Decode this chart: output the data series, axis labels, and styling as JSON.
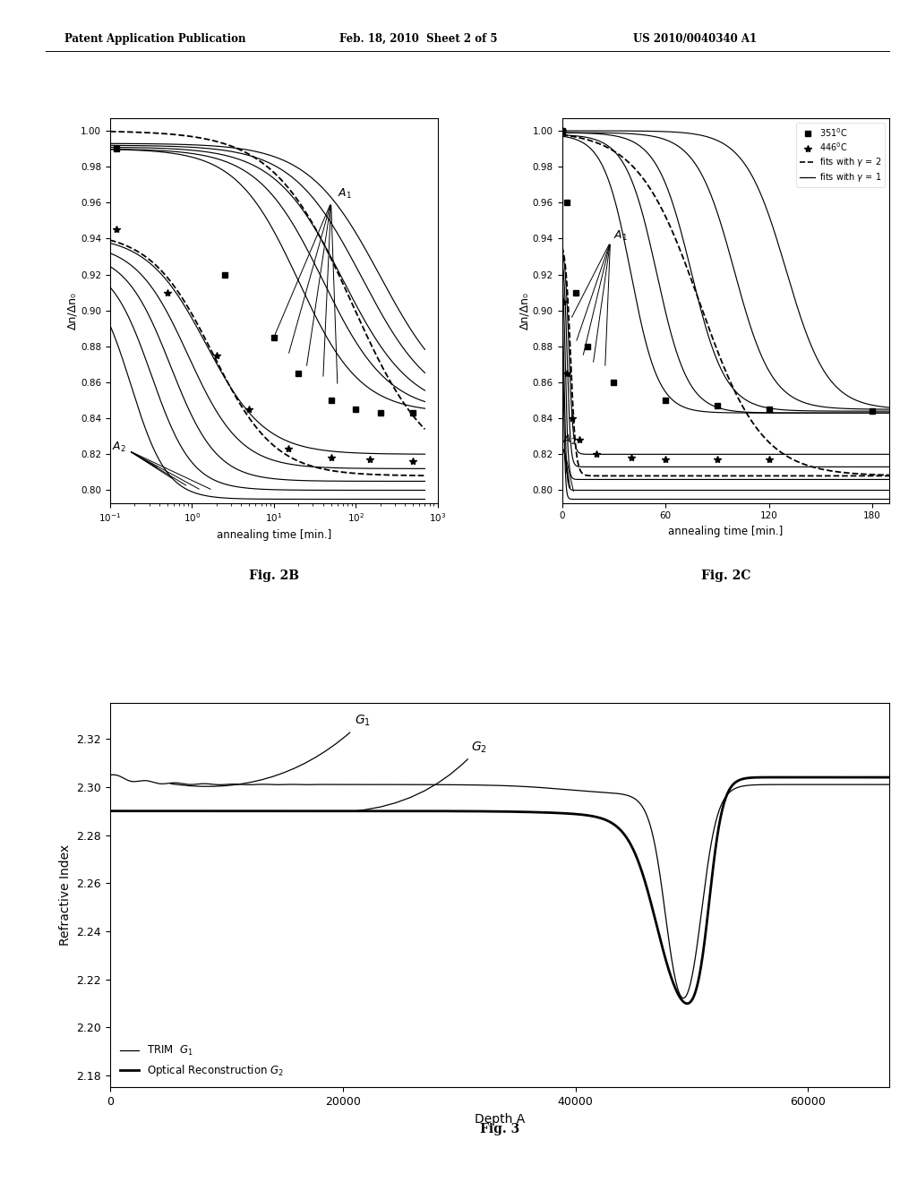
{
  "header_left": "Patent Application Publication",
  "header_mid": "Feb. 18, 2010  Sheet 2 of 5",
  "header_right": "US 2010/0040340 A1",
  "fig2b_ylabel": "Δn/Δn₀",
  "fig2b_xlabel": "annealing time [min.]",
  "fig2b_label": "Fig. 2B",
  "fig2c_ylabel": "Δn/Δn₀",
  "fig2c_xlabel": "annealing time [min.]",
  "fig2c_label": "Fig. 2C",
  "fig3_ylabel": "Refractive Index",
  "fig3_xlabel": "Depth A",
  "fig3_label": "Fig. 3",
  "fig2b_yticks": [
    0.8,
    0.82,
    0.84,
    0.86,
    0.88,
    0.9,
    0.92,
    0.94,
    0.96,
    0.98,
    1.0
  ],
  "fig2b_ylim": [
    0.793,
    1.007
  ],
  "fig2c_yticks": [
    0.8,
    0.82,
    0.84,
    0.86,
    0.88,
    0.9,
    0.92,
    0.94,
    0.96,
    0.98,
    1.0
  ],
  "fig2c_ylim": [
    0.793,
    1.007
  ],
  "fig3_yticks": [
    2.18,
    2.2,
    2.22,
    2.24,
    2.26,
    2.28,
    2.3,
    2.32
  ],
  "fig3_ylim": [
    2.175,
    2.335
  ],
  "fig3_xticks": [
    0,
    20000,
    40000,
    60000
  ],
  "fig3_xlim": [
    0,
    67000
  ]
}
